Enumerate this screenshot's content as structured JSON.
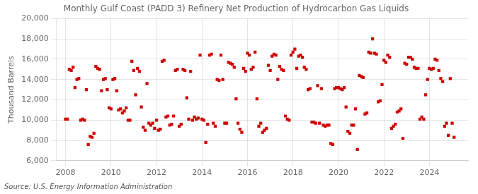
{
  "chart_data": {
    "type": "scatter",
    "title": "Monthly Gulf Coast (PADD 3) Refinery Net Production of Hydrocarbon Gas Liquids",
    "ylabel": "Thousand Barrels",
    "annotations": [
      "Source: U.S. Energy Information Administration"
    ],
    "color": "#cc0000",
    "marker": "square",
    "grid": true,
    "xlim": [
      2007.6,
      2025.7
    ],
    "xticks": [
      2008,
      2010,
      2012,
      2014,
      2016,
      2018,
      2020,
      2022,
      2024
    ],
    "ylim": [
      6000,
      20000
    ],
    "yticks": [
      {
        "value": 6000,
        "label": "6,000"
      },
      {
        "value": 8000,
        "label": "8,000"
      },
      {
        "value": 10000,
        "label": "10,000"
      },
      {
        "value": 12000,
        "label": "12,000"
      },
      {
        "value": 14000,
        "label": "14,000"
      },
      {
        "value": 16000,
        "label": "16,000"
      },
      {
        "value": 18000,
        "label": "18,000"
      },
      {
        "value": 20000,
        "label": "20,000"
      }
    ],
    "x": [
      2008,
      2008.0833333333333,
      2008.1666666666667,
      2008.25,
      2008.3333333333333,
      2008.4166666666667,
      2008.5,
      2008.5833333333333,
      2008.6666666666667,
      2008.75,
      2008.8333333333333,
      2008.9166666666667,
      2009,
      2009.0833333333333,
      2009.1666666666667,
      2009.25,
      2009.3333333333333,
      2009.4166666666667,
      2009.5,
      2009.5833333333333,
      2009.6666666666667,
      2009.75,
      2009.8333333333333,
      2009.9166666666667,
      2010,
      2010.0833333333333,
      2010.1666666666667,
      2010.25,
      2010.3333333333333,
      2010.4166666666667,
      2010.5,
      2010.5833333333333,
      2010.6666666666667,
      2010.75,
      2010.8333333333333,
      2010.9166666666667,
      2011,
      2011.0833333333333,
      2011.1666666666667,
      2011.25,
      2011.3333333333333,
      2011.4166666666667,
      2011.5,
      2011.5833333333333,
      2011.6666666666667,
      2011.75,
      2011.8333333333333,
      2011.9166666666667,
      2012,
      2012.0833333333333,
      2012.1666666666667,
      2012.25,
      2012.3333333333333,
      2012.4166666666667,
      2012.5,
      2012.5833333333333,
      2012.6666666666667,
      2012.75,
      2012.8333333333333,
      2012.9166666666667,
      2013,
      2013.0833333333333,
      2013.1666666666667,
      2013.25,
      2013.3333333333333,
      2013.4166666666667,
      2013.5,
      2013.5833333333333,
      2013.6666666666667,
      2013.75,
      2013.8333333333333,
      2013.9166666666667,
      2014,
      2014.0833333333333,
      2014.1666666666667,
      2014.25,
      2014.3333333333333,
      2014.4166666666667,
      2014.5,
      2014.5833333333333,
      2014.6666666666667,
      2014.75,
      2014.8333333333333,
      2014.9166666666667,
      2015,
      2015.0833333333333,
      2015.1666666666667,
      2015.25,
      2015.3333333333333,
      2015.4166666666667,
      2015.5,
      2015.5833333333333,
      2015.6666666666667,
      2015.75,
      2015.8333333333333,
      2015.9166666666667,
      2016,
      2016.0833333333333,
      2016.1666666666667,
      2016.25,
      2016.3333333333333,
      2016.4166666666667,
      2016.5,
      2016.5833333333333,
      2016.6666666666667,
      2016.75,
      2016.8333333333333,
      2016.9166666666667,
      2017,
      2017.0833333333333,
      2017.1666666666667,
      2017.25,
      2017.3333333333333,
      2017.4166666666667,
      2017.5,
      2017.5833333333333,
      2017.6666666666667,
      2017.75,
      2017.8333333333333,
      2017.9166666666667,
      2018,
      2018.0833333333333,
      2018.1666666666667,
      2018.25,
      2018.3333333333333,
      2018.4166666666667,
      2018.5,
      2018.5833333333333,
      2018.6666666666667,
      2018.75,
      2018.8333333333333,
      2018.9166666666667,
      2019,
      2019.0833333333333,
      2019.1666666666667,
      2019.25,
      2019.3333333333333,
      2019.4166666666667,
      2019.5,
      2019.5833333333333,
      2019.6666666666667,
      2019.75,
      2019.8333333333333,
      2019.9166666666667,
      2020,
      2020.0833333333333,
      2020.1666666666667,
      2020.25,
      2020.3333333333333,
      2020.4166666666667,
      2020.5,
      2020.5833333333333,
      2020.6666666666667,
      2020.75,
      2020.8333333333333,
      2020.9166666666667,
      2021,
      2021.0833333333333,
      2021.1666666666667,
      2021.25,
      2021.3333333333333,
      2021.4166666666667,
      2021.5,
      2021.5833333333333,
      2021.6666666666667,
      2021.75,
      2021.8333333333333,
      2021.9166666666667,
      2022,
      2022.0833333333333,
      2022.1666666666667,
      2022.25,
      2022.3333333333333,
      2022.4166666666667,
      2022.5,
      2022.5833333333333,
      2022.6666666666667,
      2022.75,
      2022.8333333333333,
      2022.9166666666667,
      2023,
      2023.0833333333333,
      2023.1666666666667,
      2023.25,
      2023.3333333333333,
      2023.4166666666667,
      2023.5,
      2023.5833333333333,
      2023.6666666666667,
      2023.75,
      2023.8333333333333,
      2023.9166666666667,
      2024,
      2024.0833333333333,
      2024.1666666666667,
      2024.25,
      2024.3333333333333,
      2024.4166666666667,
      2024.5,
      2024.5833333333333,
      2024.6666666666667,
      2024.75,
      2024.8333333333333,
      2024.9166666666667,
      2025,
      2025.0833333333333
    ],
    "values": [
      10100,
      10100,
      15000,
      14900,
      15200,
      13200,
      14000,
      14100,
      10000,
      10100,
      10000,
      13000,
      7600,
      8400,
      8300,
      8700,
      15300,
      15100,
      15000,
      12900,
      14000,
      14100,
      13000,
      11200,
      11100,
      14000,
      14100,
      12900,
      11000,
      11100,
      10700,
      10900,
      11200,
      10000,
      10000,
      15800,
      14900,
      12500,
      15100,
      14800,
      11300,
      9300,
      9000,
      13600,
      9700,
      9500,
      9700,
      9200,
      10000,
      9000,
      9100,
      15800,
      15900,
      10300,
      10400,
      9500,
      9600,
      10400,
      14900,
      15000,
      9400,
      9600,
      15000,
      14900,
      12200,
      10100,
      14800,
      10000,
      10300,
      10100,
      10200,
      16400,
      10100,
      10000,
      7800,
      9600,
      16400,
      16500,
      9700,
      9400,
      14000,
      13900,
      16400,
      14000,
      9700,
      9700,
      15700,
      15600,
      15500,
      15200,
      12100,
      9700,
      9100,
      8800,
      15100,
      14800,
      16600,
      16400,
      15000,
      15200,
      16700,
      12100,
      9400,
      9700,
      8800,
      9000,
      9200,
      15400,
      14900,
      16300,
      16500,
      16400,
      14000,
      15300,
      15000,
      14900,
      10400,
      10100,
      10000,
      16400,
      16700,
      17000,
      15100,
      16300,
      16400,
      16200,
      15200,
      15000,
      13000,
      13100,
      9800,
      9800,
      9700,
      13400,
      9700,
      13100,
      9500,
      9400,
      9500,
      9500,
      7700,
      7600,
      13100,
      13200,
      13200,
      13100,
      13000,
      13200,
      11300,
      8900,
      8700,
      9500,
      9500,
      11100,
      7100,
      14400,
      14300,
      14200,
      10600,
      10700,
      16700,
      16600,
      18000,
      16600,
      16500,
      11800,
      11900,
      13500,
      15900,
      15700,
      16400,
      16200,
      9200,
      9400,
      9600,
      10800,
      10900,
      11100,
      8200,
      15600,
      15500,
      16200,
      16200,
      16000,
      15200,
      15100,
      15100,
      10100,
      10300,
      10100,
      12500,
      14000,
      15100,
      15000,
      15100,
      16000,
      15900,
      14900,
      14100,
      13800,
      9400,
      9700,
      8500,
      14100,
      9700,
      8300
    ]
  }
}
